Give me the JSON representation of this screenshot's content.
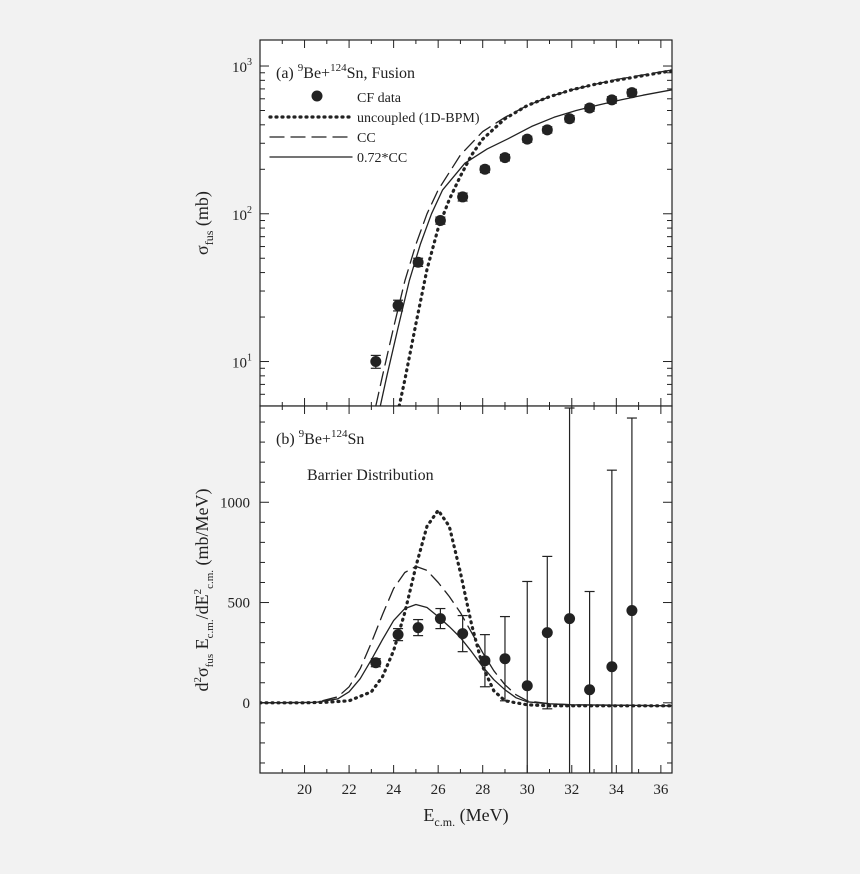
{
  "colors": {
    "background": "#f2f2f2",
    "plot_background": "#ffffff",
    "ink": "#222222"
  },
  "chart_data": [
    {
      "id": "fusion",
      "type": "scatter",
      "scale": "log",
      "label_parts": [
        "(a) ",
        "9",
        "Be+",
        "124",
        "Sn, Fusion"
      ],
      "ylabel": {
        "main": "σ",
        "sub": "fus",
        "rest": " (mb)"
      },
      "xlim": [
        18,
        36.5
      ],
      "ylim": [
        5,
        1500
      ],
      "ytick_values": [
        10,
        100,
        1000
      ],
      "ytick_labels": [
        [
          "10",
          "1"
        ],
        [
          "10",
          "2"
        ],
        [
          "10",
          "3"
        ]
      ],
      "legend": [
        {
          "kind": "marker",
          "text": "CF data"
        },
        {
          "kind": "dotted",
          "text": "uncoupled (1D-BPM)"
        },
        {
          "kind": "dashed",
          "text": "CC"
        },
        {
          "kind": "solid",
          "text": "0.72*CC"
        }
      ],
      "points": {
        "x": [
          23.2,
          24.2,
          25.1,
          26.1,
          27.1,
          28.1,
          29.0,
          30.0,
          30.9,
          31.9,
          32.8,
          33.8,
          34.7
        ],
        "y": [
          10,
          24,
          47,
          90,
          130,
          200,
          240,
          320,
          370,
          440,
          520,
          590,
          660
        ],
        "err": [
          1,
          2,
          3,
          5,
          8,
          10,
          12,
          15,
          18,
          22,
          26,
          30,
          35
        ]
      },
      "series": [
        {
          "name": "uncoupled (1D-BPM)",
          "style": "dotted",
          "x": [
            24.25,
            24.5,
            25.0,
            25.5,
            26.0,
            26.5,
            27.0,
            27.5,
            28.0,
            29.0,
            30.0,
            31.0,
            32.0,
            33.0,
            34.0,
            35.0,
            36.5
          ],
          "y": [
            5,
            7.5,
            18,
            42,
            80,
            125,
            180,
            250,
            320,
            440,
            540,
            620,
            690,
            750,
            800,
            850,
            930
          ]
        },
        {
          "name": "CC",
          "style": "dashed",
          "x": [
            23.2,
            23.5,
            24.0,
            24.5,
            25.0,
            25.5,
            26.0,
            27.0,
            28.0,
            29.0,
            30.0,
            31.0,
            32.0,
            33.0,
            34.0,
            35.0,
            36.5
          ],
          "y": [
            5,
            8,
            17,
            35,
            62,
            100,
            145,
            250,
            360,
            450,
            540,
            620,
            690,
            750,
            810,
            860,
            940
          ]
        },
        {
          "name": "0.72*CC",
          "style": "solid",
          "x": [
            23.4,
            23.7,
            24.2,
            24.7,
            25.2,
            25.7,
            26.2,
            27.2,
            28.2,
            29.2,
            30.2,
            31.2,
            32.2,
            33.2,
            34.2,
            35.2,
            36.5
          ],
          "y": [
            5,
            8,
            17,
            35,
            62,
            100,
            145,
            220,
            275,
            325,
            390,
            450,
            500,
            545,
            590,
            635,
            690
          ]
        }
      ]
    },
    {
      "id": "barrier",
      "type": "scatter",
      "scale": "linear",
      "label_parts": [
        "(b) ",
        "9",
        "Be+",
        "124",
        "Sn"
      ],
      "sublabel": "Barrier Distribution",
      "ylabel": {
        "text": "d2σfus Ec.m./dE2c.m. (mb/MeV)"
      },
      "xlabel": {
        "main": "E",
        "sub": "c.m.",
        "rest": " (MeV)"
      },
      "xlim": [
        18,
        36.5
      ],
      "ylim": [
        -350,
        1480
      ],
      "ytick_values": [
        0,
        500,
        1000
      ],
      "ytick_labels": [
        "0",
        "500",
        "1000"
      ],
      "xtick_values": [
        20,
        22,
        24,
        26,
        28,
        30,
        32,
        34,
        36
      ],
      "xtick_labels": [
        "20",
        "22",
        "24",
        "26",
        "28",
        "30",
        "32",
        "34",
        "36"
      ],
      "points": {
        "x": [
          23.2,
          24.2,
          25.1,
          26.1,
          27.1,
          28.1,
          29.0,
          30.0,
          30.9,
          31.9,
          32.8,
          33.8,
          34.7
        ],
        "y": [
          200,
          340,
          375,
          420,
          345,
          210,
          220,
          85,
          350,
          420,
          65,
          180,
          460
        ],
        "err": [
          20,
          30,
          40,
          50,
          90,
          130,
          210,
          520,
          380,
          1050,
          490,
          980,
          960
        ]
      },
      "series": [
        {
          "name": "uncoupled (1D-BPM)",
          "style": "dotted",
          "x": [
            18.0,
            20.0,
            21.0,
            22.0,
            23.0,
            23.5,
            24.0,
            24.5,
            25.0,
            25.5,
            26.0,
            26.5,
            27.0,
            27.5,
            28.0,
            28.5,
            29.0,
            30.0,
            31.0,
            32.0,
            34.0,
            36.5
          ],
          "y": [
            0,
            0,
            3,
            10,
            55,
            130,
            260,
            450,
            680,
            880,
            960,
            880,
            650,
            390,
            180,
            60,
            10,
            -10,
            -15,
            -15,
            -15,
            -15
          ]
        },
        {
          "name": "CC",
          "style": "dashed",
          "x": [
            18.0,
            20.5,
            21.5,
            22.0,
            22.5,
            23.0,
            23.5,
            24.0,
            24.5,
            25.0,
            25.5,
            26.0,
            26.5,
            27.0,
            27.5,
            28.0,
            28.5,
            29.0,
            29.5,
            30.0,
            31.0,
            32.0,
            34.0,
            36.5
          ],
          "y": [
            0,
            2,
            30,
            80,
            170,
            300,
            440,
            570,
            650,
            680,
            660,
            600,
            530,
            450,
            350,
            250,
            160,
            90,
            40,
            10,
            -5,
            -10,
            -12,
            -15
          ]
        },
        {
          "name": "0.72*CC",
          "style": "solid",
          "x": [
            18.0,
            20.5,
            21.5,
            22.0,
            22.5,
            23.0,
            23.5,
            24.0,
            24.5,
            25.0,
            25.5,
            26.0,
            26.5,
            27.0,
            27.5,
            28.0,
            28.5,
            29.0,
            29.5,
            30.0,
            31.0,
            32.0,
            34.0,
            36.5
          ],
          "y": [
            0,
            2,
            20,
            55,
            120,
            215,
            315,
            410,
            470,
            490,
            475,
            430,
            380,
            325,
            255,
            180,
            115,
            65,
            25,
            5,
            -5,
            -10,
            -12,
            -15
          ]
        }
      ]
    }
  ]
}
